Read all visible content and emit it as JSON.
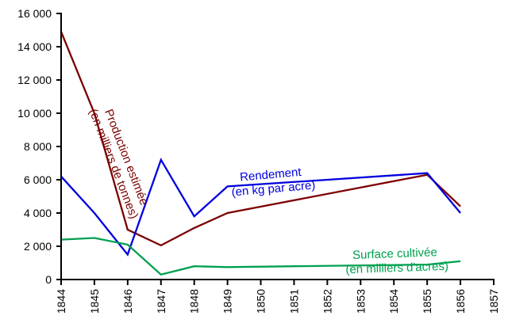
{
  "chart_data": {
    "type": "line",
    "title": "",
    "xlabel": "",
    "ylabel": "",
    "xlim": [
      1844,
      1857
    ],
    "ylim": [
      0,
      16000
    ],
    "x_ticks": [
      1844,
      1845,
      1846,
      1847,
      1848,
      1849,
      1850,
      1851,
      1852,
      1853,
      1854,
      1855,
      1856,
      1857
    ],
    "x_tick_labels": [
      "1844",
      "1845",
      "1846",
      "1847",
      "1848",
      "1849",
      "1850",
      "1851",
      "1852",
      "1853",
      "1854",
      "1855",
      "1856",
      "1857"
    ],
    "y_ticks": [
      0,
      2000,
      4000,
      6000,
      8000,
      10000,
      12000,
      14000,
      16000
    ],
    "y_tick_labels": [
      "0",
      "2 000",
      "4 000",
      "6 000",
      "8 000",
      "10 000",
      "12 000",
      "14 000",
      "16 000"
    ],
    "grid": false,
    "legend": "none",
    "series": [
      {
        "name": "Production estimée (en milliers de tonnes)",
        "label_lines": [
          "Production estimée",
          "(en milliers de tonnes)"
        ],
        "color": "#7b0000",
        "x": [
          1844,
          1845,
          1846,
          1847,
          1848,
          1849,
          1855,
          1856
        ],
        "y": [
          14900,
          10000,
          3000,
          2050,
          3100,
          4000,
          6300,
          4400
        ]
      },
      {
        "name": "Rendement (en kg par acre)",
        "label_lines": [
          "Rendement",
          "(en kg par acre)"
        ],
        "color": "#0000dd",
        "x": [
          1844,
          1845,
          1846,
          1847,
          1848,
          1849,
          1855,
          1856
        ],
        "y": [
          6200,
          4000,
          1500,
          7200,
          3800,
          5600,
          6400,
          4000
        ]
      },
      {
        "name": "Surface cultivée (en milliers d'acres)",
        "label_lines": [
          "Surface cultivée",
          "(en milliers d'acres)"
        ],
        "color": "#00a050",
        "x": [
          1844,
          1845,
          1846,
          1847,
          1848,
          1849,
          1855,
          1856
        ],
        "y": [
          2400,
          2500,
          2100,
          300,
          800,
          750,
          900,
          1100
        ]
      }
    ]
  }
}
